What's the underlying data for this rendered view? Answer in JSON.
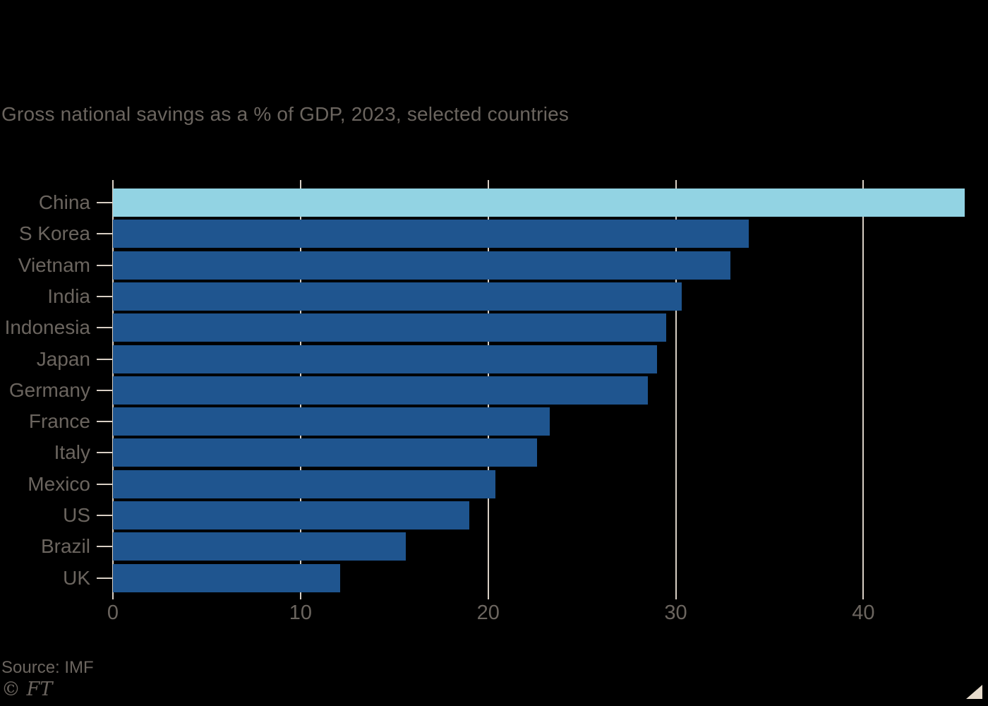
{
  "title": "Gross national savings as a % of GDP, 2023, selected countries",
  "source": "Source: IMF",
  "copyright": "© FT",
  "colors": {
    "background": "#000000",
    "text": "#6B655F",
    "grid": "#D8CFC4",
    "bar": "#1F558F",
    "highlight": "#92D3E3",
    "corner_triangle": "#E7DCCC"
  },
  "chart_data": {
    "type": "bar",
    "orientation": "horizontal",
    "title": "Gross national savings as a % of GDP, 2023, selected countries",
    "categories": [
      "China",
      "S Korea",
      "Vietnam",
      "India",
      "Indonesia",
      "Japan",
      "Germany",
      "France",
      "Italy",
      "Mexico",
      "US",
      "Brazil",
      "UK"
    ],
    "values": [
      45.4,
      33.9,
      32.9,
      30.3,
      29.5,
      29.0,
      28.5,
      23.3,
      22.6,
      20.4,
      19.0,
      15.6,
      12.1
    ],
    "highlight_index": 0,
    "xlabel": "",
    "ylabel": "",
    "xticks": [
      0,
      10,
      20,
      30,
      40
    ],
    "xlim": [
      0,
      45.4
    ],
    "grid": "vertical-only",
    "legend": "none",
    "unit": "% of GDP",
    "source": "Source: IMF"
  }
}
